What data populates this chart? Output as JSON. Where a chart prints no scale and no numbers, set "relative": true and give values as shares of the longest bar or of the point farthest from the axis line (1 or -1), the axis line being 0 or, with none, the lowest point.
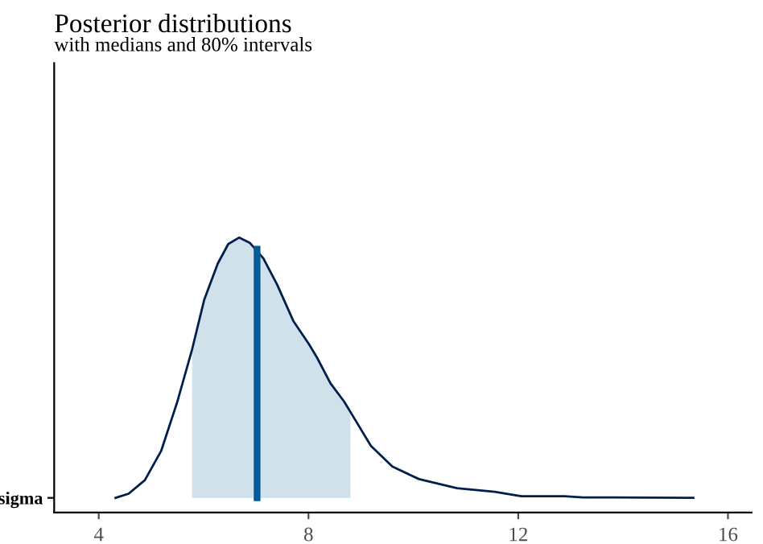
{
  "chart_data": {
    "type": "line",
    "title": "Posterior distributions",
    "subtitle": "with medians and 80% intervals",
    "ylabel": "sigma",
    "relative": true,
    "xlim": [
      3.15,
      16.45
    ],
    "xticks": [
      4,
      8,
      12,
      16
    ],
    "grid": false,
    "legend": false,
    "marker": "none",
    "line_style": "solid",
    "series": [
      {
        "type": "area",
        "color": "#d1e1ec",
        "x": [
          5.78,
          6.01,
          6.27,
          6.47,
          6.68,
          6.88,
          7.14,
          7.4,
          7.71,
          8.01,
          8.16,
          8.42,
          8.68,
          8.8
        ],
        "values": [
          0.57,
          0.76,
          0.9,
          0.975,
          1,
          0.98,
          0.92,
          0.82,
          0.68,
          0.59,
          0.54,
          0.44,
          0.37,
          0.33
        ]
      },
      {
        "type": "line",
        "color": "#005b96",
        "x": [
          7.02,
          7.02
        ],
        "values": [
          0,
          0.955
        ]
      },
      {
        "color": "#011f4b",
        "x": [
          4.32,
          4.57,
          4.88,
          5.19,
          5.5,
          5.78,
          6.01,
          6.27,
          6.47,
          6.68,
          6.88,
          7.14,
          7.4,
          7.71,
          8.01,
          8.16,
          8.42,
          8.68,
          8.83,
          9.19,
          9.6,
          10.11,
          10.83,
          11.55,
          12.06,
          12.88,
          13.24,
          15.34
        ],
        "values": [
          0,
          0.016,
          0.068,
          0.18,
          0.37,
          0.57,
          0.76,
          0.9,
          0.975,
          1,
          0.98,
          0.92,
          0.82,
          0.68,
          0.59,
          0.54,
          0.44,
          0.37,
          0.32,
          0.2,
          0.12,
          0.072,
          0.037,
          0.023,
          0.006,
          0.006,
          0.002,
          0
        ]
      }
    ]
  }
}
